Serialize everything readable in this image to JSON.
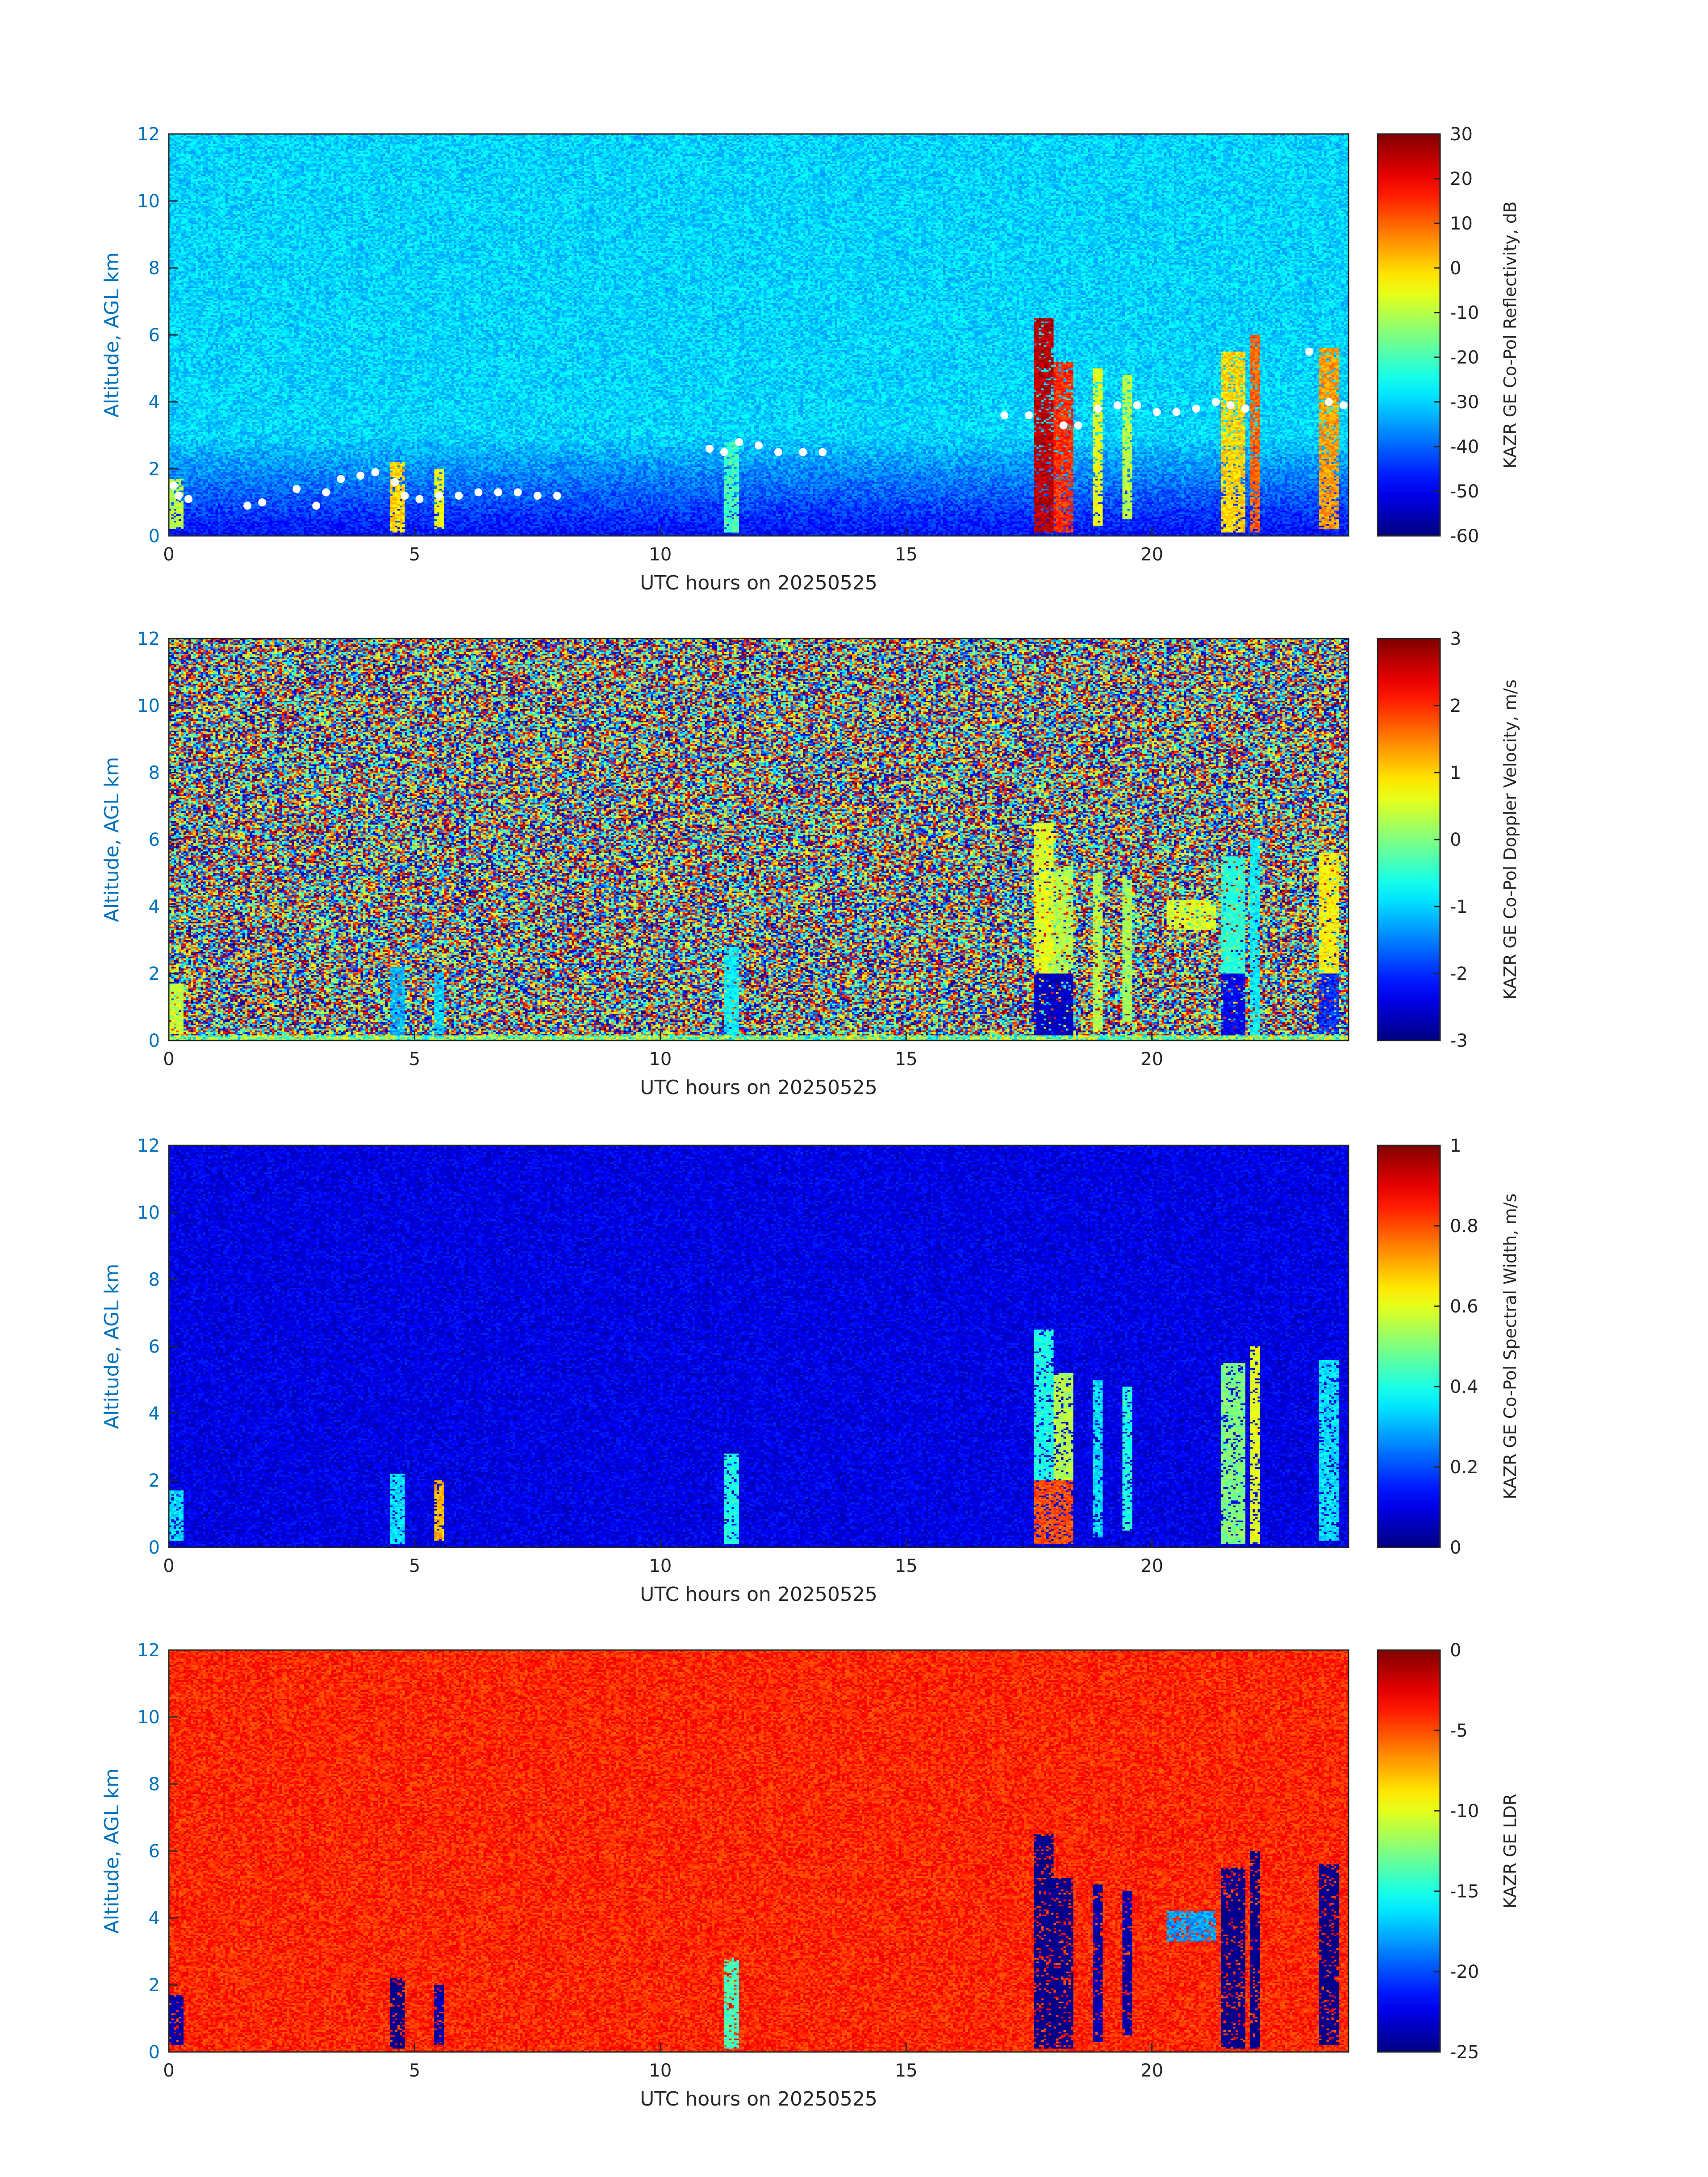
{
  "chart_data": [
    {
      "type": "heatmap",
      "xlabel": "UTC hours on 20250525",
      "ylabel": "Altitude, AGL km",
      "xlim": [
        0,
        24
      ],
      "ylim": [
        0,
        12
      ],
      "x_ticks": [
        "0",
        "5",
        "10",
        "15",
        "20"
      ],
      "y_ticks": [
        "0",
        "2",
        "4",
        "6",
        "8",
        "10",
        "12"
      ],
      "colorbar": {
        "label": "KAZR GE Co-Pol Reflectivity, dB",
        "range": [
          -60,
          30
        ],
        "ticks": [
          "-60",
          "-50",
          "-40",
          "-30",
          "-20",
          "-10",
          "0",
          "10",
          "20",
          "30"
        ],
        "colormap": "jet"
      },
      "background": {
        "clear_air_value": -30,
        "near_surface_value": -48
      },
      "features": [
        {
          "x": [
            0.0,
            0.3
          ],
          "y": [
            0.2,
            1.7
          ],
          "value": -10
        },
        {
          "x": [
            4.5,
            4.8
          ],
          "y": [
            0.1,
            2.2
          ],
          "value": 0
        },
        {
          "x": [
            5.4,
            5.6
          ],
          "y": [
            0.2,
            2.0
          ],
          "value": -5
        },
        {
          "x": [
            11.3,
            11.6
          ],
          "y": [
            0.1,
            2.8
          ],
          "value": -20
        },
        {
          "x": [
            17.6,
            18.0
          ],
          "y": [
            0.1,
            6.5
          ],
          "value": 25
        },
        {
          "x": [
            18.0,
            18.4
          ],
          "y": [
            0.1,
            5.2
          ],
          "value": 15
        },
        {
          "x": [
            18.8,
            19.0
          ],
          "y": [
            0.3,
            5.0
          ],
          "value": -5
        },
        {
          "x": [
            19.4,
            19.6
          ],
          "y": [
            0.5,
            4.8
          ],
          "value": -10
        },
        {
          "x": [
            21.4,
            21.9
          ],
          "y": [
            0.1,
            5.5
          ],
          "value": 0
        },
        {
          "x": [
            22.0,
            22.2
          ],
          "y": [
            0.1,
            6.0
          ],
          "value": 10
        },
        {
          "x": [
            23.4,
            23.8
          ],
          "y": [
            0.2,
            5.6
          ],
          "value": 5
        }
      ],
      "flagged_points_color": "#ffffff",
      "flagged_points": [
        [
          0.1,
          1.5
        ],
        [
          0.2,
          1.2
        ],
        [
          0.4,
          1.1
        ],
        [
          1.6,
          0.9
        ],
        [
          1.9,
          1.0
        ],
        [
          2.6,
          1.4
        ],
        [
          3.0,
          0.9
        ],
        [
          3.2,
          1.3
        ],
        [
          3.5,
          1.7
        ],
        [
          3.9,
          1.8
        ],
        [
          4.2,
          1.9
        ],
        [
          4.6,
          1.6
        ],
        [
          4.8,
          1.2
        ],
        [
          5.1,
          1.1
        ],
        [
          5.5,
          1.2
        ],
        [
          5.9,
          1.2
        ],
        [
          6.3,
          1.3
        ],
        [
          6.7,
          1.3
        ],
        [
          7.1,
          1.3
        ],
        [
          7.5,
          1.2
        ],
        [
          7.9,
          1.2
        ],
        [
          11.0,
          2.6
        ],
        [
          11.3,
          2.5
        ],
        [
          11.6,
          2.8
        ],
        [
          12.0,
          2.7
        ],
        [
          12.4,
          2.5
        ],
        [
          12.9,
          2.5
        ],
        [
          13.3,
          2.5
        ],
        [
          17.0,
          3.6
        ],
        [
          17.5,
          3.6
        ],
        [
          18.2,
          3.3
        ],
        [
          18.5,
          3.3
        ],
        [
          18.9,
          3.8
        ],
        [
          19.3,
          3.9
        ],
        [
          19.7,
          3.9
        ],
        [
          20.1,
          3.7
        ],
        [
          20.5,
          3.7
        ],
        [
          20.9,
          3.8
        ],
        [
          21.3,
          4.0
        ],
        [
          21.6,
          3.9
        ],
        [
          21.9,
          3.8
        ],
        [
          23.2,
          5.5
        ],
        [
          23.6,
          4.0
        ],
        [
          23.9,
          3.9
        ]
      ]
    },
    {
      "type": "heatmap",
      "xlabel": "UTC hours on 20250525",
      "ylabel": "Altitude, AGL km",
      "xlim": [
        0,
        24
      ],
      "ylim": [
        0,
        12
      ],
      "x_ticks": [
        "0",
        "5",
        "10",
        "15",
        "20"
      ],
      "y_ticks": [
        "0",
        "2",
        "4",
        "6",
        "8",
        "10",
        "12"
      ],
      "colorbar": {
        "label": "KAZR GE Co-Pol Doppler Velocity, m/s",
        "range": [
          -3,
          3
        ],
        "ticks": [
          "-3",
          "-2",
          "-1",
          "0",
          "1",
          "2",
          "3"
        ],
        "colormap": "jet"
      },
      "background": {
        "noise": "uniform random over full range"
      },
      "features": [
        {
          "x": [
            0.0,
            0.3
          ],
          "y": [
            0.2,
            1.7
          ],
          "value": 0.4
        },
        {
          "x": [
            4.5,
            4.8
          ],
          "y": [
            0.1,
            2.2
          ],
          "value": -1.2
        },
        {
          "x": [
            5.4,
            5.6
          ],
          "y": [
            0.2,
            2.0
          ],
          "value": -1.0
        },
        {
          "x": [
            11.3,
            11.6
          ],
          "y": [
            0.1,
            2.8
          ],
          "value": -0.8
        },
        {
          "x": [
            17.6,
            18.0
          ],
          "y": [
            2.0,
            6.5
          ],
          "value": 0.6
        },
        {
          "x": [
            17.6,
            18.4
          ],
          "y": [
            0.1,
            2.0
          ],
          "value": -2.6
        },
        {
          "x": [
            18.0,
            18.4
          ],
          "y": [
            2.0,
            5.2
          ],
          "value": 0.3
        },
        {
          "x": [
            18.8,
            19.0
          ],
          "y": [
            0.3,
            5.0
          ],
          "value": 0.3
        },
        {
          "x": [
            19.4,
            19.6
          ],
          "y": [
            0.5,
            4.8
          ],
          "value": 0.2
        },
        {
          "x": [
            20.3,
            21.3
          ],
          "y": [
            3.3,
            4.2
          ],
          "value": 0.5
        },
        {
          "x": [
            21.4,
            21.9
          ],
          "y": [
            0.1,
            2.0
          ],
          "value": -2.3
        },
        {
          "x": [
            21.4,
            21.9
          ],
          "y": [
            2.0,
            5.5
          ],
          "value": -0.5
        },
        {
          "x": [
            22.0,
            22.2
          ],
          "y": [
            0.1,
            6.0
          ],
          "value": -0.8
        },
        {
          "x": [
            23.4,
            23.8
          ],
          "y": [
            2.0,
            5.6
          ],
          "value": 0.8
        },
        {
          "x": [
            23.4,
            23.8
          ],
          "y": [
            0.2,
            2.0
          ],
          "value": -2.0
        }
      ]
    },
    {
      "type": "heatmap",
      "xlabel": "UTC hours on 20250525",
      "ylabel": "Altitude, AGL km",
      "xlim": [
        0,
        24
      ],
      "ylim": [
        0,
        12
      ],
      "x_ticks": [
        "0",
        "5",
        "10",
        "15",
        "20"
      ],
      "y_ticks": [
        "0",
        "2",
        "4",
        "6",
        "8",
        "10",
        "12"
      ],
      "colorbar": {
        "label": "KAZR GE Co-Pol Spectral Width, m/s",
        "range": [
          0,
          1
        ],
        "ticks": [
          "0",
          "0.2",
          "0.4",
          "0.6",
          "0.8",
          "1"
        ],
        "colormap": "jet"
      },
      "background": {
        "clear_air_value": 0.1
      },
      "features": [
        {
          "x": [
            0.0,
            0.3
          ],
          "y": [
            0.2,
            1.7
          ],
          "value": 0.35
        },
        {
          "x": [
            4.5,
            4.8
          ],
          "y": [
            0.1,
            2.2
          ],
          "value": 0.35
        },
        {
          "x": [
            5.4,
            5.6
          ],
          "y": [
            0.2,
            2.0
          ],
          "value": 0.7
        },
        {
          "x": [
            11.3,
            11.6
          ],
          "y": [
            0.1,
            2.8
          ],
          "value": 0.4
        },
        {
          "x": [
            17.6,
            18.0
          ],
          "y": [
            2.0,
            6.5
          ],
          "value": 0.4
        },
        {
          "x": [
            17.6,
            18.4
          ],
          "y": [
            0.1,
            2.0
          ],
          "value": 0.8
        },
        {
          "x": [
            18.0,
            18.4
          ],
          "y": [
            2.0,
            5.2
          ],
          "value": 0.55
        },
        {
          "x": [
            18.8,
            19.0
          ],
          "y": [
            0.3,
            5.0
          ],
          "value": 0.35
        },
        {
          "x": [
            19.4,
            19.6
          ],
          "y": [
            0.5,
            4.8
          ],
          "value": 0.4
        },
        {
          "x": [
            21.4,
            21.9
          ],
          "y": [
            0.1,
            5.5
          ],
          "value": 0.5
        },
        {
          "x": [
            22.0,
            22.2
          ],
          "y": [
            0.1,
            6.0
          ],
          "value": 0.6
        },
        {
          "x": [
            23.4,
            23.8
          ],
          "y": [
            0.2,
            5.6
          ],
          "value": 0.35
        }
      ]
    },
    {
      "type": "heatmap",
      "xlabel": "UTC hours on 20250525",
      "ylabel": "Altitude, AGL km",
      "xlim": [
        0,
        24
      ],
      "ylim": [
        0,
        12
      ],
      "x_ticks": [
        "0",
        "5",
        "10",
        "15",
        "20"
      ],
      "y_ticks": [
        "0",
        "2",
        "4",
        "6",
        "8",
        "10",
        "12"
      ],
      "colorbar": {
        "label": "KAZR GE LDR",
        "range": [
          -25,
          0
        ],
        "ticks": [
          "-25",
          "-20",
          "-15",
          "-10",
          "-5",
          "0"
        ],
        "colormap": "jet"
      },
      "background": {
        "clear_air_value": -4
      },
      "features": [
        {
          "x": [
            0.0,
            0.3
          ],
          "y": [
            0.2,
            1.7
          ],
          "value": -24
        },
        {
          "x": [
            4.5,
            4.8
          ],
          "y": [
            0.1,
            2.2
          ],
          "value": -25
        },
        {
          "x": [
            5.4,
            5.6
          ],
          "y": [
            0.2,
            2.0
          ],
          "value": -24
        },
        {
          "x": [
            11.3,
            11.6
          ],
          "y": [
            0.1,
            2.8
          ],
          "value": -14
        },
        {
          "x": [
            17.6,
            18.0
          ],
          "y": [
            0.1,
            6.5
          ],
          "value": -25
        },
        {
          "x": [
            18.0,
            18.4
          ],
          "y": [
            0.1,
            5.2
          ],
          "value": -25
        },
        {
          "x": [
            18.8,
            19.0
          ],
          "y": [
            0.3,
            5.0
          ],
          "value": -24
        },
        {
          "x": [
            19.4,
            19.6
          ],
          "y": [
            0.5,
            4.8
          ],
          "value": -24
        },
        {
          "x": [
            20.3,
            21.3
          ],
          "y": [
            3.3,
            4.2
          ],
          "value": -18
        },
        {
          "x": [
            21.4,
            21.9
          ],
          "y": [
            0.1,
            5.5
          ],
          "value": -25
        },
        {
          "x": [
            22.0,
            22.2
          ],
          "y": [
            0.1,
            6.0
          ],
          "value": -25
        },
        {
          "x": [
            23.4,
            23.8
          ],
          "y": [
            0.2,
            5.6
          ],
          "value": -25
        }
      ]
    }
  ]
}
